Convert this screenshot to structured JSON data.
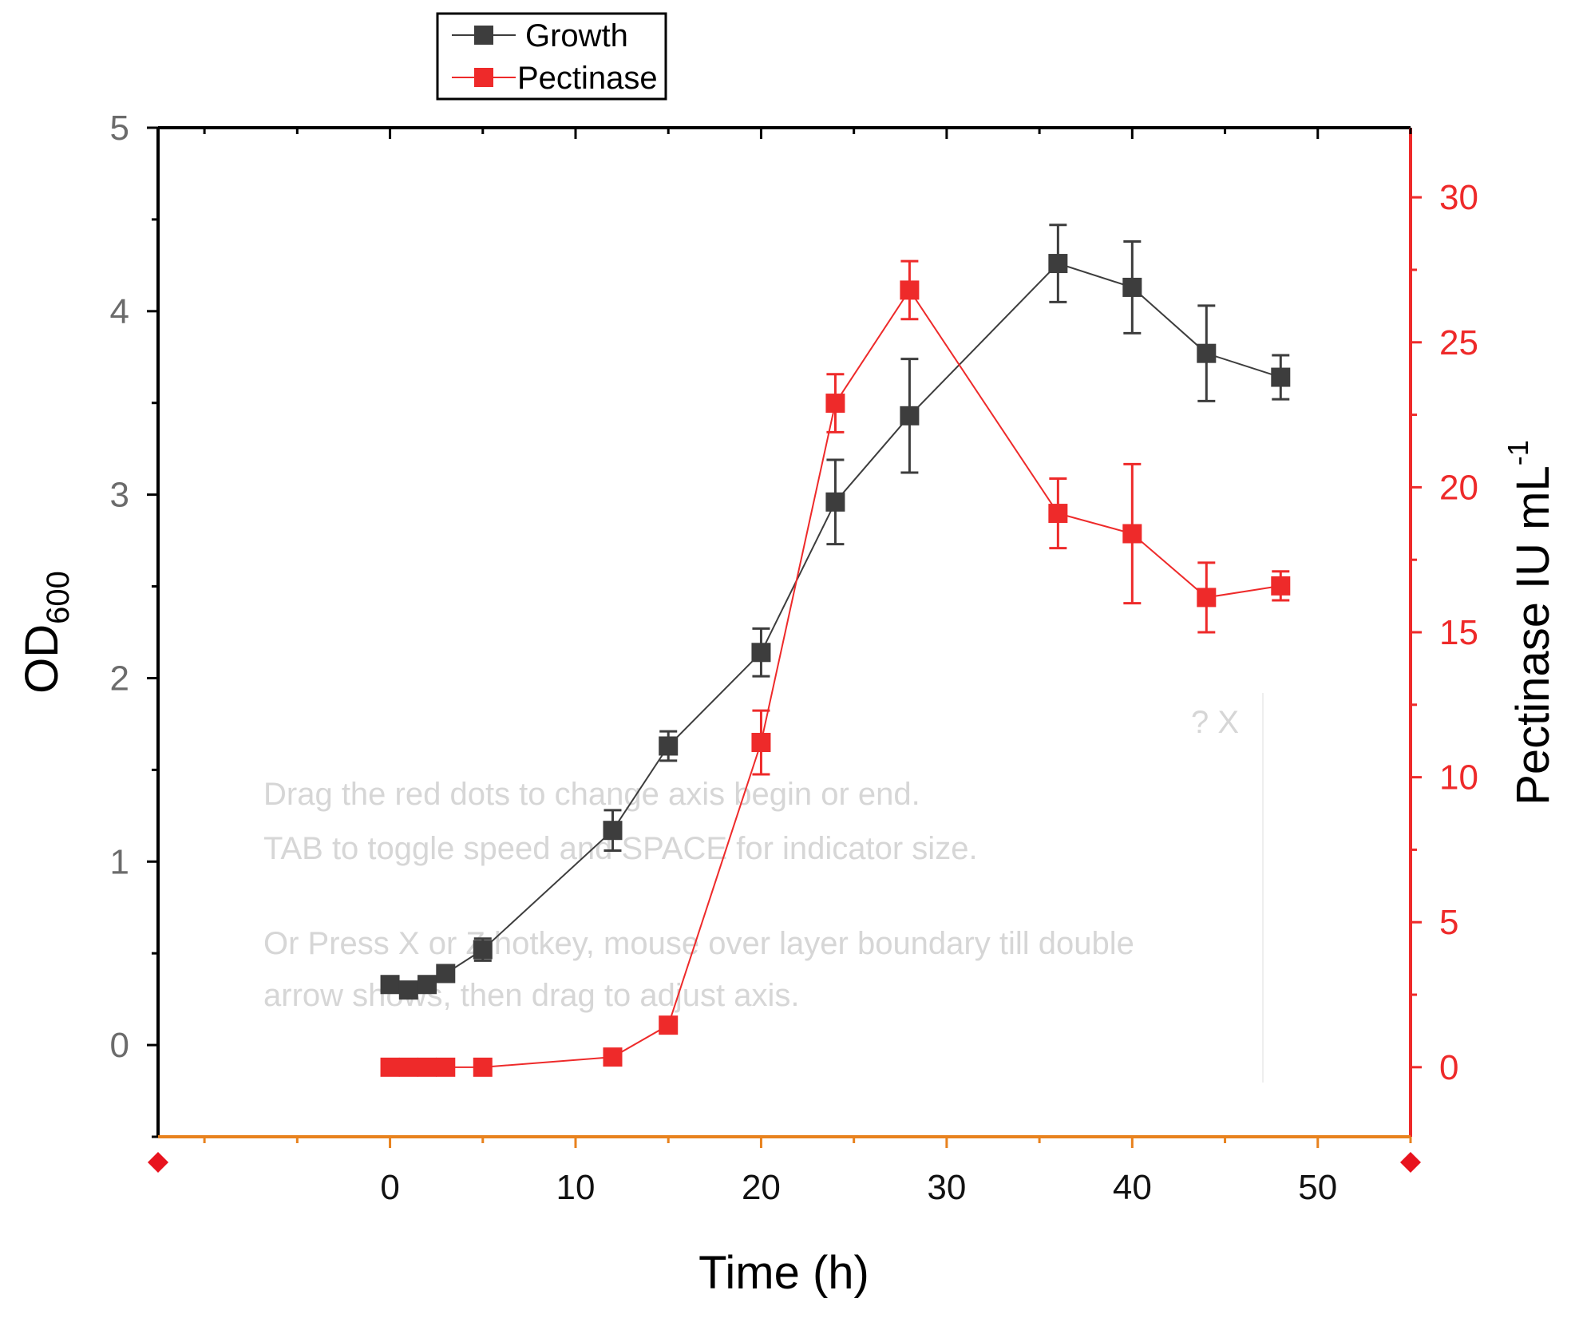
{
  "colors": {
    "growth": "#3d3d3d",
    "pectinase": "#ee2a2a",
    "x_axis": "#e8821e",
    "left_axis": "#000000",
    "marker_red": "#e8131e"
  },
  "chart_data": {
    "type": "line",
    "xlabel": "Time (h)",
    "ylabel_left": {
      "main": "OD",
      "sub": "600"
    },
    "ylabel_right": {
      "main": "Pectinase IU mL",
      "sup": "-1"
    },
    "xlim": [
      -12.5,
      55
    ],
    "ylim_left": [
      -0.5,
      5
    ],
    "ylim_right": [
      -2.4,
      32.4
    ],
    "x_ticks": [
      0,
      10,
      20,
      30,
      40,
      50
    ],
    "y_left_ticks": [
      0,
      1,
      2,
      3,
      4,
      5
    ],
    "y_right_ticks": [
      0,
      5,
      10,
      15,
      20,
      25,
      30
    ],
    "series": [
      {
        "name": "Growth",
        "axis": "left",
        "x": [
          0,
          1,
          2,
          3,
          5,
          12,
          15,
          20,
          24,
          28,
          36,
          40,
          44,
          48
        ],
        "values": [
          0.33,
          0.3,
          0.33,
          0.39,
          0.52,
          1.17,
          1.63,
          2.14,
          2.96,
          3.43,
          4.26,
          4.13,
          3.77,
          3.64
        ],
        "errors": [
          0.02,
          0.02,
          0.02,
          0.02,
          0.06,
          0.11,
          0.08,
          0.13,
          0.23,
          0.31,
          0.21,
          0.25,
          0.26,
          0.12
        ]
      },
      {
        "name": "Pectinase",
        "axis": "right",
        "x": [
          0,
          1,
          2,
          3,
          5,
          12,
          15,
          20,
          24,
          28,
          36,
          40,
          44,
          48
        ],
        "values": [
          0.0,
          0.0,
          0.0,
          0.0,
          0.0,
          0.35,
          1.45,
          11.2,
          22.9,
          26.8,
          19.1,
          18.4,
          16.2,
          16.6
        ],
        "errors": [
          0.0,
          0.0,
          0.0,
          0.0,
          0.0,
          0.0,
          0.0,
          1.1,
          1.0,
          1.0,
          1.2,
          2.4,
          1.2,
          0.5
        ]
      }
    ],
    "legend": {
      "position": "top-left",
      "entries": [
        "Growth",
        "Pectinase"
      ]
    }
  },
  "tooltip": {
    "line1": "Drag the red dots to change axis begin or end.",
    "line2": "TAB to toggle speed and SPACE for indicator size.",
    "line3": "Or Press X or Z hotkey, mouse over layer boundary till double",
    "line4": "arrow shows, then drag to adjust axis.",
    "buttons": "? X"
  }
}
